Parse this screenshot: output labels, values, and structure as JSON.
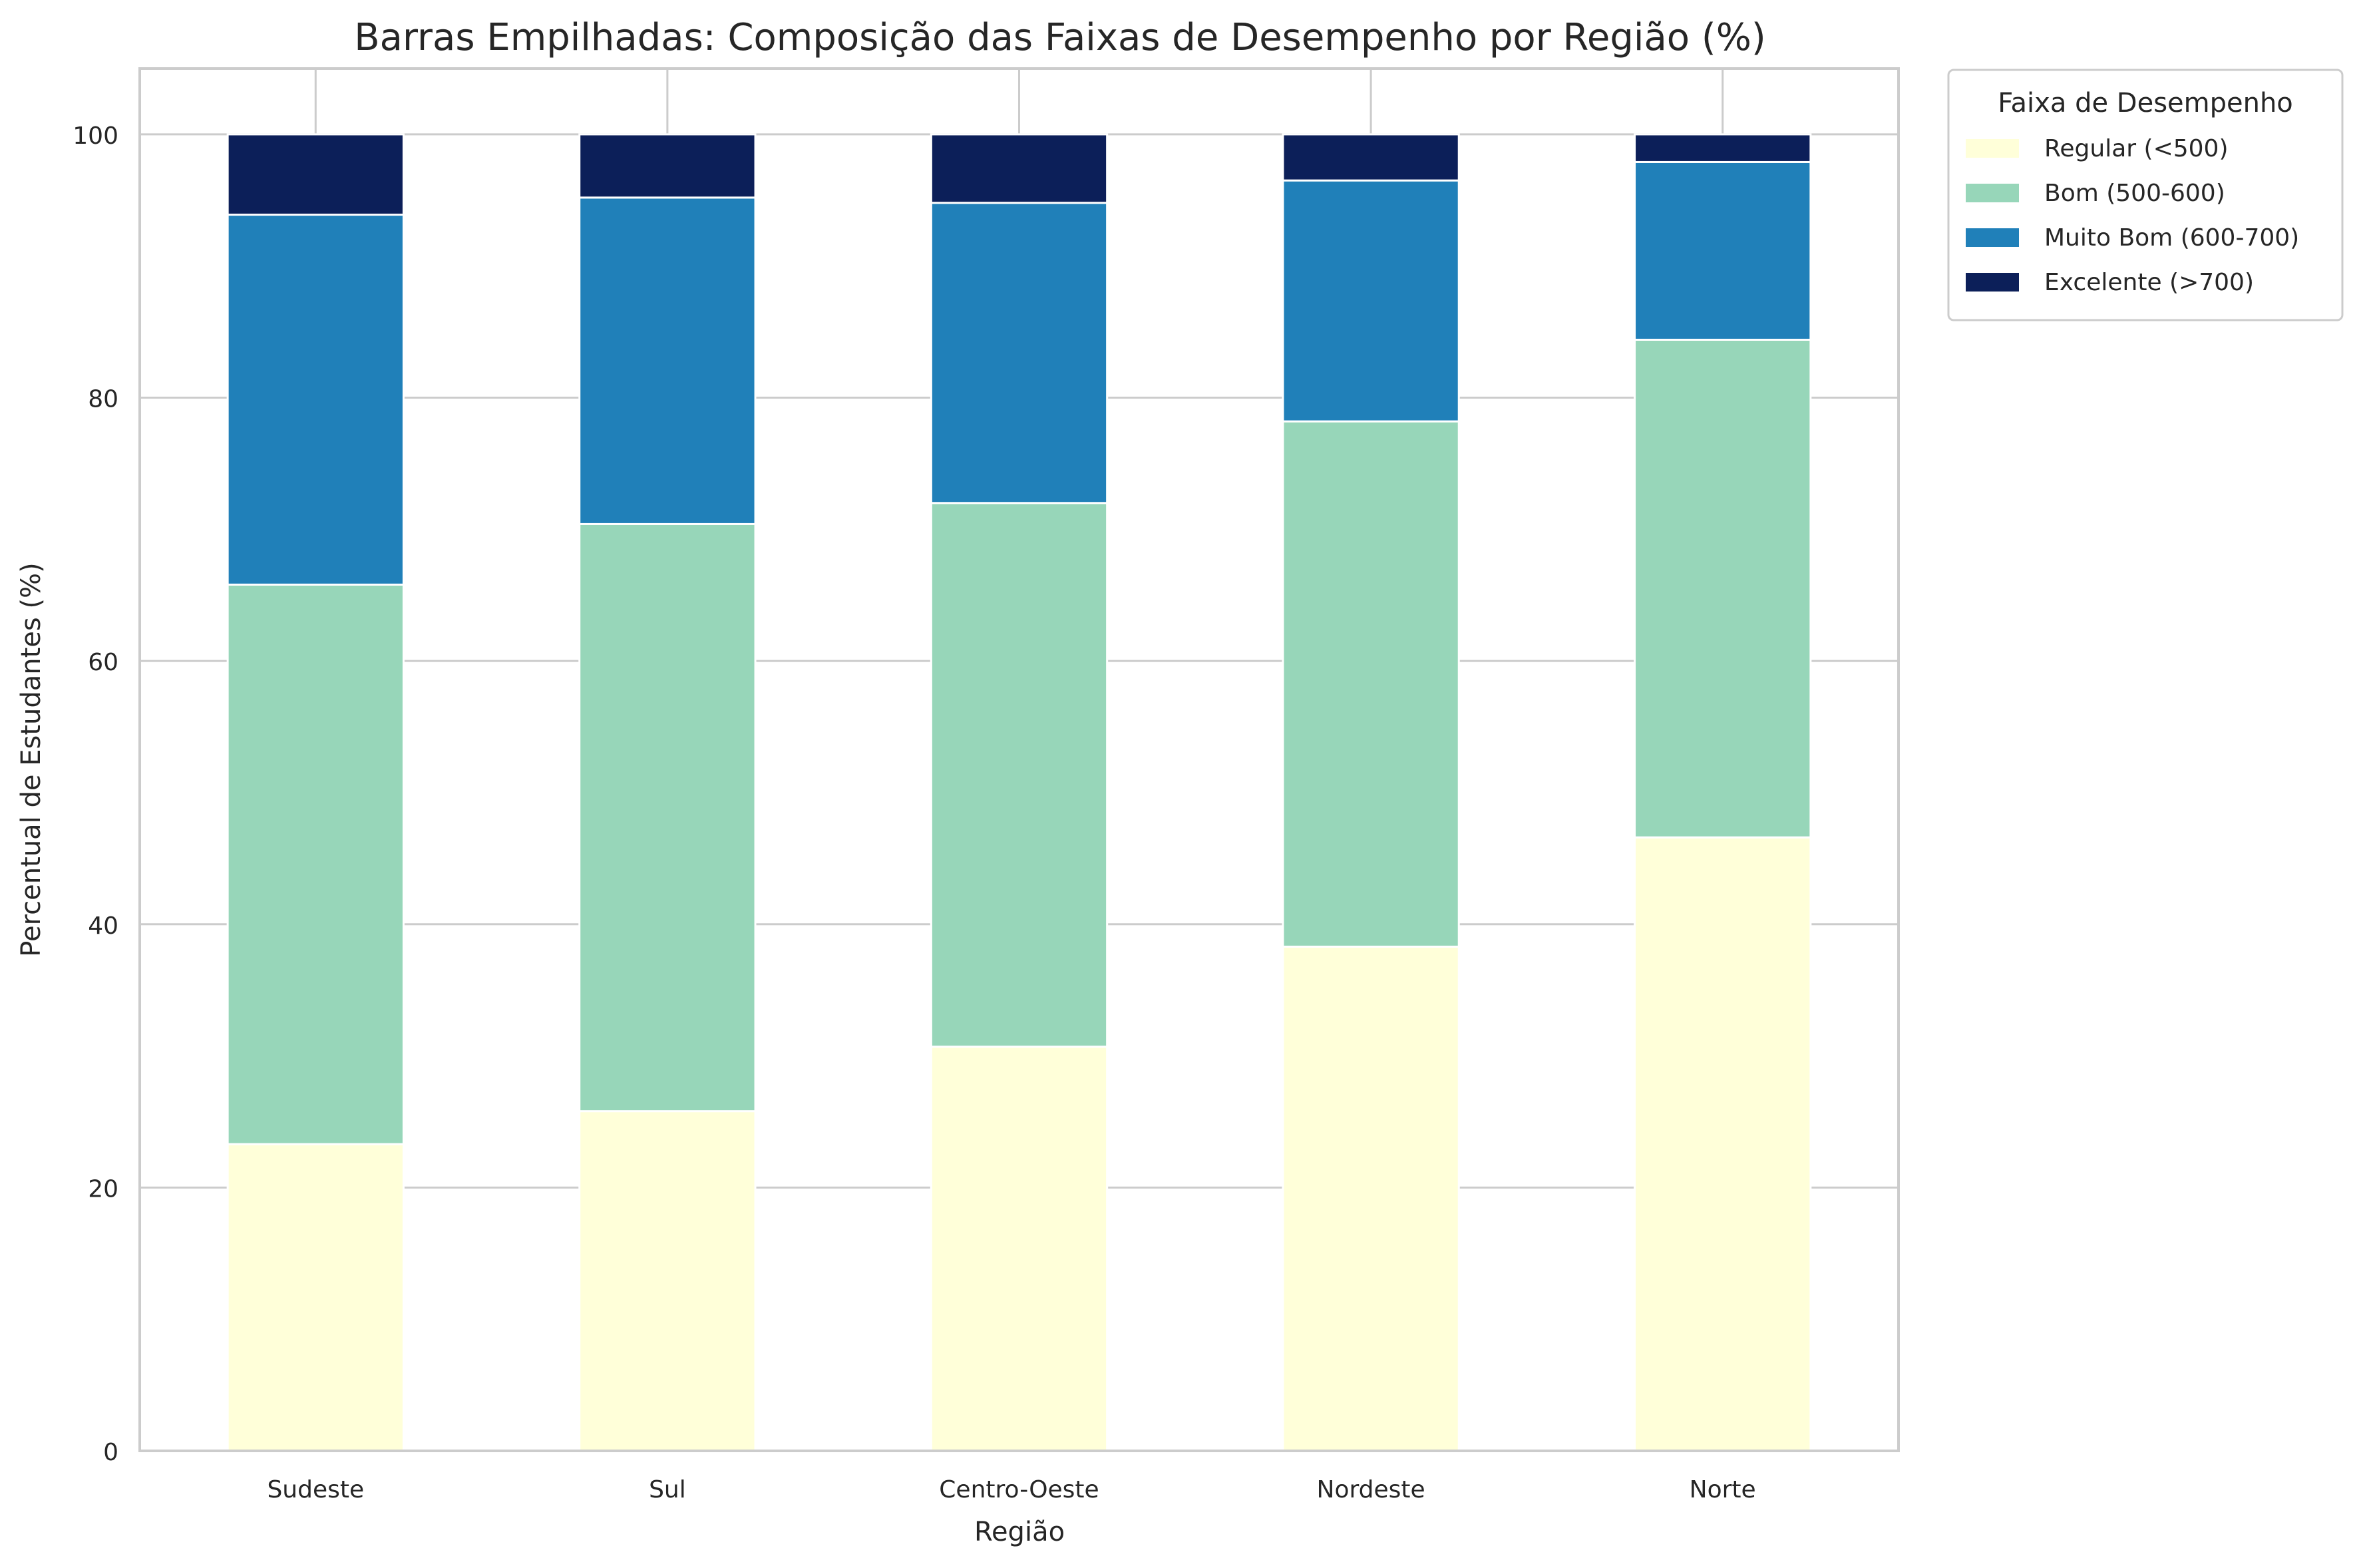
{
  "chart_data": {
    "type": "bar",
    "stacked": true,
    "title": "Barras Empilhadas: Composição das Faixas de Desempenho por Região (%)",
    "xlabel": "Região",
    "ylabel": "Percentual de Estudantes (%)",
    "ylim": [
      0,
      105
    ],
    "yticks": [
      0,
      20,
      40,
      60,
      80,
      100
    ],
    "grid": true,
    "categories": [
      "Sudeste",
      "Sul",
      "Centro-Oeste",
      "Nordeste",
      "Norte"
    ],
    "legend": {
      "title": "Faixa de Desempenho",
      "placement": "outside-top-right"
    },
    "series": [
      {
        "name": "Regular (<500)",
        "color": "#ffffd9",
        "values": [
          23.3,
          25.8,
          30.7,
          38.3,
          46.6
        ]
      },
      {
        "name": "Bom (500-600)",
        "color": "#97d6b9",
        "values": [
          42.5,
          44.6,
          41.3,
          39.9,
          37.8
        ]
      },
      {
        "name": "Muito Bom (600-700)",
        "color": "#2080b9",
        "values": [
          28.1,
          24.8,
          22.8,
          18.3,
          13.5
        ]
      },
      {
        "name": "Excelente (>700)",
        "color": "#0c1f59",
        "values": [
          6.1,
          4.8,
          5.2,
          3.5,
          2.1
        ]
      }
    ]
  }
}
